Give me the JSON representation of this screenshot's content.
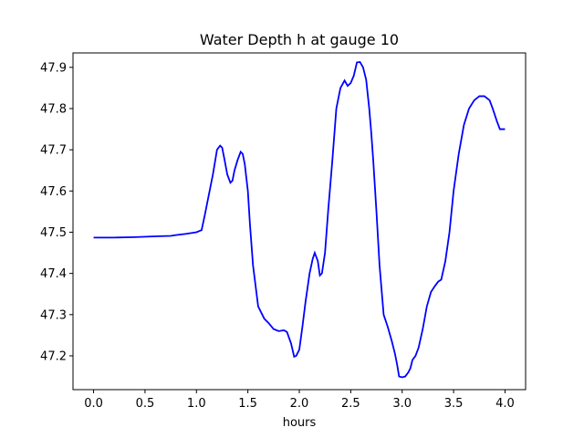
{
  "chart_data": {
    "type": "line",
    "title": "Water Depth h at gauge 10",
    "xlabel": "hours",
    "ylabel": "",
    "xlim": [
      -0.2,
      4.2
    ],
    "ylim": [
      47.118,
      47.935
    ],
    "xticks": [
      "0.0",
      "0.5",
      "1.0",
      "1.5",
      "2.0",
      "2.5",
      "3.0",
      "3.5",
      "4.0"
    ],
    "yticks": [
      "47.2",
      "47.3",
      "47.4",
      "47.5",
      "47.6",
      "47.7",
      "47.8",
      "47.9"
    ],
    "grid": false,
    "line_color": "#0000ff",
    "series": [
      {
        "x": [
          0.0,
          0.2,
          0.4,
          0.6,
          0.75,
          0.8,
          0.9,
          1.0,
          1.05,
          1.08,
          1.12,
          1.16,
          1.2,
          1.23,
          1.25,
          1.27,
          1.3,
          1.33,
          1.35,
          1.37,
          1.4,
          1.43,
          1.45,
          1.47,
          1.5,
          1.52,
          1.55,
          1.58,
          1.6,
          1.63,
          1.66,
          1.7,
          1.75,
          1.8,
          1.85,
          1.88,
          1.92,
          1.95,
          1.97,
          2.0,
          2.03,
          2.06,
          2.1,
          2.13,
          2.15,
          2.18,
          2.2,
          2.22,
          2.25,
          2.28,
          2.32,
          2.36,
          2.4,
          2.44,
          2.47,
          2.5,
          2.53,
          2.56,
          2.59,
          2.62,
          2.65,
          2.68,
          2.7,
          2.72,
          2.75,
          2.78,
          2.82,
          2.86,
          2.9,
          2.93,
          2.95,
          2.97,
          3.0,
          3.03,
          3.06,
          3.08,
          3.1,
          3.13,
          3.16,
          3.2,
          3.24,
          3.28,
          3.32,
          3.35,
          3.38,
          3.42,
          3.46,
          3.5,
          3.55,
          3.6,
          3.65,
          3.7,
          3.75,
          3.8,
          3.85,
          3.88,
          3.92,
          3.95,
          3.97,
          4.0
        ],
        "y": [
          47.487,
          47.487,
          47.488,
          47.49,
          47.491,
          47.493,
          47.496,
          47.5,
          47.505,
          47.54,
          47.59,
          47.64,
          47.7,
          47.71,
          47.705,
          47.68,
          47.64,
          47.62,
          47.625,
          47.65,
          47.675,
          47.695,
          47.69,
          47.665,
          47.6,
          47.52,
          47.42,
          47.36,
          47.32,
          47.305,
          47.29,
          47.28,
          47.265,
          47.26,
          47.262,
          47.258,
          47.23,
          47.198,
          47.2,
          47.215,
          47.27,
          47.33,
          47.4,
          47.435,
          47.45,
          47.43,
          47.395,
          47.4,
          47.45,
          47.55,
          47.67,
          47.8,
          47.85,
          47.868,
          47.855,
          47.862,
          47.88,
          47.912,
          47.913,
          47.9,
          47.87,
          47.8,
          47.74,
          47.67,
          47.55,
          47.42,
          47.3,
          47.27,
          47.235,
          47.205,
          47.18,
          47.15,
          47.148,
          47.15,
          47.16,
          47.17,
          47.19,
          47.2,
          47.22,
          47.265,
          47.32,
          47.355,
          47.37,
          47.38,
          47.385,
          47.43,
          47.5,
          47.6,
          47.69,
          47.76,
          47.8,
          47.82,
          47.83,
          47.83,
          47.82,
          47.8,
          47.77,
          47.75,
          47.75,
          47.75
        ]
      }
    ]
  }
}
